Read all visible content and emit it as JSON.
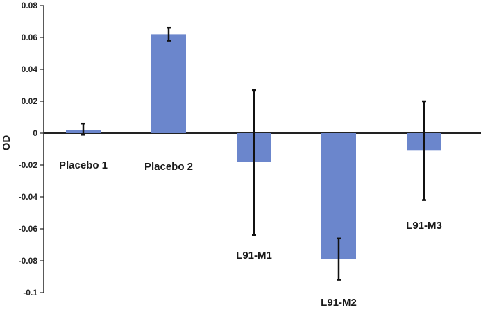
{
  "chart_data": {
    "type": "bar",
    "title": "",
    "xlabel": "",
    "ylabel": "OD",
    "ylim": [
      -0.1,
      0.08
    ],
    "yticks": [
      0.08,
      0.06,
      0.04,
      0.02,
      0,
      -0.02,
      -0.04,
      -0.06,
      -0.08,
      -0.1
    ],
    "ytick_labels": [
      "0.08",
      "0.06",
      "0.04",
      "0.02",
      "0",
      "-0.02",
      "-0.04",
      "-0.06",
      "-0.08",
      "-0.1"
    ],
    "categories": [
      "Placebo 1",
      "Placebo 2",
      "L91-M1",
      "L91-M2",
      "L91-M3"
    ],
    "values": [
      0.002,
      0.062,
      -0.018,
      -0.079,
      -0.011
    ],
    "error_low": [
      -0.001,
      0.058,
      -0.064,
      -0.092,
      -0.042
    ],
    "error_high": [
      0.006,
      0.066,
      0.027,
      -0.066,
      0.02
    ],
    "grid": false,
    "legend": "none",
    "bar_color": "#6b86cc",
    "error_color": "#111111"
  }
}
